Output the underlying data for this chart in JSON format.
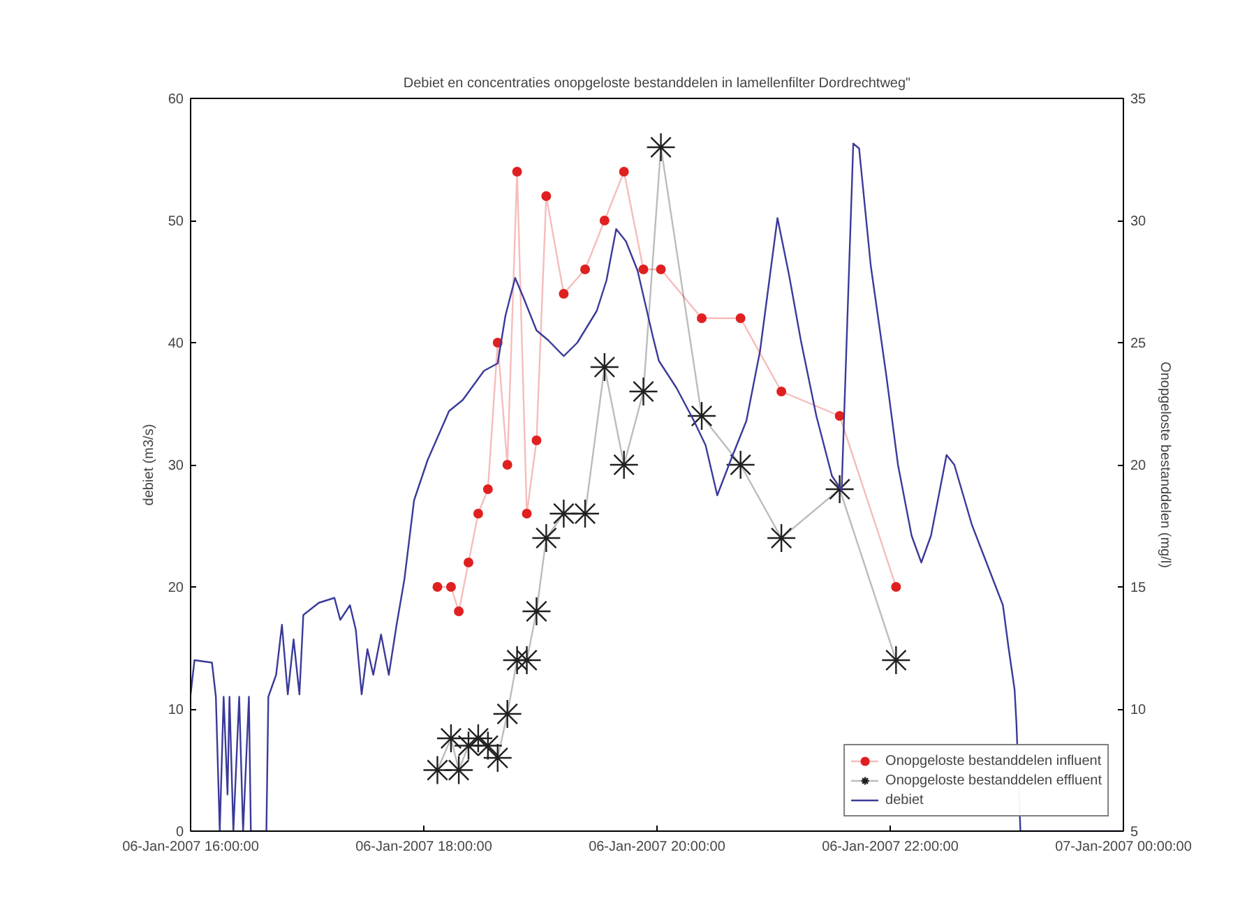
{
  "chart_data": {
    "type": "line",
    "title": "Debiet en concentraties onopgeloste bestanddelen in lamellenfilter Dordrechtweg\"",
    "ylabel": "debiet (m3/s)",
    "y2label": "Onopgeloste bestanddelen (mg/l)",
    "xlim": [
      "2007-01-06T16:00",
      "2007-01-07T00:00"
    ],
    "xticks": [
      {
        "value": "2007-01-06T16:00",
        "label": "06-Jan-2007 16:00:00"
      },
      {
        "value": "2007-01-06T18:00",
        "label": "06-Jan-2007 18:00:00"
      },
      {
        "value": "2007-01-06T20:00",
        "label": "06-Jan-2007 20:00:00"
      },
      {
        "value": "2007-01-06T22:00",
        "label": "06-Jan-2007 22:00:00"
      },
      {
        "value": "2007-01-07T00:00",
        "label": "07-Jan-2007 00:00:00"
      }
    ],
    "ylim": [
      0,
      60
    ],
    "yticks": [
      0,
      10,
      20,
      30,
      40,
      50,
      60
    ],
    "y2lim": [
      5,
      35
    ],
    "y2ticks": [
      5,
      10,
      15,
      20,
      25,
      30,
      35
    ],
    "grid": false,
    "legend": "bottom right",
    "x": [
      "2007-01-06T18:07",
      "2007-01-06T18:14",
      "2007-01-06T18:18",
      "2007-01-06T18:23",
      "2007-01-06T18:28",
      "2007-01-06T18:33",
      "2007-01-06T18:38",
      "2007-01-06T18:43",
      "2007-01-06T18:48",
      "2007-01-06T18:53",
      "2007-01-06T18:58",
      "2007-01-06T19:03",
      "2007-01-06T19:12",
      "2007-01-06T19:23",
      "2007-01-06T19:33",
      "2007-01-06T19:43",
      "2007-01-06T19:53",
      "2007-01-06T20:02",
      "2007-01-06T20:23",
      "2007-01-06T20:43",
      "2007-01-06T21:04",
      "2007-01-06T21:34",
      "2007-01-06T22:03"
    ],
    "series": [
      {
        "name": "Onopgeloste bestanddelen influent",
        "color": "#e02020",
        "marker": "circle",
        "axis": "y2",
        "values": [
          15,
          15,
          14,
          16,
          18,
          19,
          25,
          20,
          32,
          18,
          21,
          31,
          27,
          28,
          30,
          32,
          28,
          28,
          26,
          26,
          23,
          22,
          15
        ]
      },
      {
        "name": "Onopgeloste bestanddelen effluent",
        "color": "#202020",
        "marker": "cross",
        "axis": "y2",
        "values": [
          7.5,
          8.8,
          7.5,
          8.5,
          8.8,
          8.5,
          8,
          9.8,
          12,
          12,
          14,
          17,
          18,
          18,
          24,
          20,
          23,
          33,
          22,
          20,
          17,
          19,
          12
        ]
      },
      {
        "name": "debiet",
        "color": "#3a3a9a",
        "marker": "none",
        "axis": "y",
        "x": [
          "2007-01-06T16:00",
          "2007-01-06T16:02",
          "2007-01-06T16:11",
          "2007-01-06T16:13",
          "2007-01-06T16:15",
          "2007-01-06T16:17",
          "2007-01-06T16:19",
          "2007-01-06T16:20",
          "2007-01-06T16:22",
          "2007-01-06T16:25",
          "2007-01-06T16:27",
          "2007-01-06T16:30",
          "2007-01-06T16:31",
          "2007-01-06T16:39",
          "2007-01-06T16:40",
          "2007-01-06T16:44",
          "2007-01-06T16:47",
          "2007-01-06T16:50",
          "2007-01-06T16:53",
          "2007-01-06T16:56",
          "2007-01-06T16:58",
          "2007-01-06T17:06",
          "2007-01-06T17:14",
          "2007-01-06T17:17",
          "2007-01-06T17:22",
          "2007-01-06T17:25",
          "2007-01-06T17:28",
          "2007-01-06T17:31",
          "2007-01-06T17:34",
          "2007-01-06T17:38",
          "2007-01-06T17:42",
          "2007-01-06T17:46",
          "2007-01-06T17:50",
          "2007-01-06T17:55",
          "2007-01-06T18:02",
          "2007-01-06T18:13",
          "2007-01-06T18:20",
          "2007-01-06T18:31",
          "2007-01-06T18:38",
          "2007-01-06T18:42",
          "2007-01-06T18:47",
          "2007-01-06T18:51",
          "2007-01-06T18:58",
          "2007-01-06T19:04",
          "2007-01-06T19:12",
          "2007-01-06T19:19",
          "2007-01-06T19:29",
          "2007-01-06T19:34",
          "2007-01-06T19:39",
          "2007-01-06T19:44",
          "2007-01-06T19:50",
          "2007-01-06T19:58",
          "2007-01-06T20:01",
          "2007-01-06T20:10",
          "2007-01-06T20:19",
          "2007-01-06T20:25",
          "2007-01-06T20:31",
          "2007-01-06T20:38",
          "2007-01-06T20:46",
          "2007-01-06T20:53",
          "2007-01-06T21:02",
          "2007-01-06T21:08",
          "2007-01-06T21:14",
          "2007-01-06T21:22",
          "2007-01-06T21:30",
          "2007-01-06T21:35",
          "2007-01-06T21:41",
          "2007-01-06T21:44",
          "2007-01-06T21:50",
          "2007-01-06T21:58",
          "2007-01-06T22:04",
          "2007-01-06T22:11",
          "2007-01-06T22:16",
          "2007-01-06T22:21",
          "2007-01-06T22:29",
          "2007-01-06T22:33",
          "2007-01-06T22:42",
          "2007-01-06T22:50",
          "2007-01-06T22:58",
          "2007-01-06T23:01",
          "2007-01-06T23:04",
          "2007-01-06T23:05",
          "2007-01-06T23:07",
          "2007-01-06T23:59"
        ],
        "values": [
          11.2,
          14,
          13.8,
          11,
          0,
          11,
          3,
          11,
          0,
          11,
          0,
          11,
          0,
          0,
          11,
          12.8,
          16.9,
          11.2,
          15.7,
          11.2,
          17.7,
          18.7,
          19.1,
          17.3,
          18.5,
          16.5,
          11.2,
          14.9,
          12.8,
          16.1,
          12.8,
          16.9,
          20.6,
          27.1,
          30.4,
          34.4,
          35.3,
          37.7,
          38.3,
          42.2,
          45.3,
          43.8,
          41,
          40.2,
          38.9,
          40,
          42.6,
          45.1,
          49.3,
          48.3,
          45.9,
          40.4,
          38.5,
          36.3,
          33.6,
          31.6,
          27.5,
          30.4,
          33.6,
          39.3,
          50.2,
          45.5,
          40.2,
          34,
          29.1,
          27.9,
          56.3,
          55.9,
          46.3,
          37.3,
          30,
          24.2,
          22,
          24.2,
          30.8,
          30,
          25.1,
          21.8,
          18.5,
          14.9,
          11.6,
          8.7,
          0,
          0
        ]
      }
    ]
  }
}
